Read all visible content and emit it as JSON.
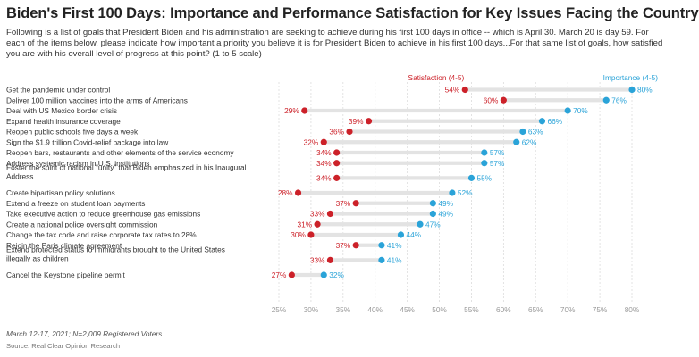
{
  "title": "Biden's First 100 Days: Importance and Performance Satisfaction for Key Issues Facing the Country",
  "subtitle": "Following is a list of goals that President Biden and his administration are seeking to achieve during his first 100 days in office -- which is April 30. March 20 is day 59. For each of the items below, please indicate how important a priority you believe it is for President Biden to achieve in his first 100 days...For that same list of goals, how satisfied you are with his overall level of progress at this point? (1 to 5 scale)",
  "footer_note": "March 12-17, 2021; N=2,009 Registered Voters",
  "footer_source": "Source: Real Clear Opinion Research",
  "colors": {
    "satisfaction": "#cc2129",
    "importance": "#2aa3d8",
    "bar": "#e3e3e3",
    "grid": "#dcdcdc",
    "tick": "#999999"
  },
  "chart_data": {
    "type": "dot-range",
    "xlim": [
      25,
      82
    ],
    "ticks": [
      25,
      30,
      35,
      40,
      45,
      50,
      55,
      60,
      65,
      70,
      75,
      80
    ],
    "tick_labels": [
      "25%",
      "30%",
      "35%",
      "40%",
      "45%",
      "50%",
      "55%",
      "60%",
      "65%",
      "70%",
      "75%",
      "80%"
    ],
    "value_suffix": "%",
    "series": [
      {
        "key": "satisfaction",
        "name": "Satisfaction (4-5)"
      },
      {
        "key": "importance",
        "name": "Importance (4-5)"
      }
    ],
    "rows": [
      {
        "label": [
          "Get the pandemic under control"
        ],
        "satisfaction": 54,
        "importance": 80
      },
      {
        "label": [
          "Deliver 100 million vaccines into the arms of Americans"
        ],
        "satisfaction": 60,
        "importance": 76
      },
      {
        "label": [
          "Deal with US Mexico border crisis"
        ],
        "satisfaction": 29,
        "importance": 70
      },
      {
        "label": [
          "Expand health insurance coverage"
        ],
        "satisfaction": 39,
        "importance": 66
      },
      {
        "label": [
          "Reopen public schools five days a week"
        ],
        "satisfaction": 36,
        "importance": 63
      },
      {
        "label": [
          "Sign the $1.9 trillion Covid-relief package into law"
        ],
        "satisfaction": 32,
        "importance": 62
      },
      {
        "label": [
          "Reopen bars, restaurants and other elements of the service economy"
        ],
        "satisfaction": 34,
        "importance": 57
      },
      {
        "label": [
          "Address systemic racism in U.S. institutions"
        ],
        "satisfaction": 34,
        "importance": 57
      },
      {
        "label": [
          "Foster the spirit of national “unity” that Biden emphasized in his Inaugural",
          "Address"
        ],
        "satisfaction": 34,
        "importance": 55
      },
      {
        "label": [
          "Create bipartisan policy solutions"
        ],
        "satisfaction": 28,
        "importance": 52
      },
      {
        "label": [
          "Extend a freeze on student loan payments"
        ],
        "satisfaction": 37,
        "importance": 49
      },
      {
        "label": [
          "Take executive action to reduce greenhouse gas emissions"
        ],
        "satisfaction": 33,
        "importance": 49
      },
      {
        "label": [
          "Create a national police oversight commission"
        ],
        "satisfaction": 31,
        "importance": 47
      },
      {
        "label": [
          "Change the tax code and raise corporate tax rates to 28%"
        ],
        "satisfaction": 30,
        "importance": 44
      },
      {
        "label": [
          "Rejoin the Paris climate agreement"
        ],
        "satisfaction": 37,
        "importance": 41
      },
      {
        "label": [
          "Extend protected status to immigrants brought to the United States",
          "illegally as children"
        ],
        "satisfaction": 33,
        "importance": 41
      },
      {
        "label": [
          "Cancel the Keystone pipeline permit"
        ],
        "satisfaction": 27,
        "importance": 32
      }
    ]
  }
}
